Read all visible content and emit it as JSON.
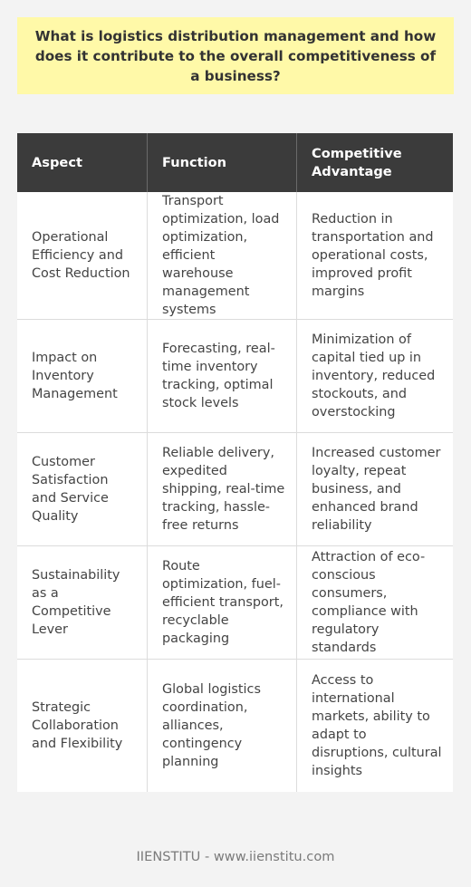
{
  "question": "What is logistics distribution management and how does it contribute to the overall competitiveness of a business?",
  "table": {
    "headers": [
      "Aspect",
      "Function",
      "Competitive Advantage"
    ],
    "rows": [
      {
        "aspect": "Operational Efficiency and Cost Reduction",
        "function": "Transport optimization, load optimization, efficient warehouse management systems",
        "advantage": "Reduction in transportation and operational costs, improved profit margins"
      },
      {
        "aspect": "Impact on Inventory Management",
        "function": "Forecasting, real-time inventory tracking, optimal stock levels",
        "advantage": "Minimization of capital tied up in inventory, reduced stockouts, and overstocking"
      },
      {
        "aspect": "Customer Satisfaction and Service Quality",
        "function": "Reliable delivery, expedited shipping, real-time tracking, hassle-free returns",
        "advantage": "Increased customer loyalty, repeat business, and enhanced brand reliability"
      },
      {
        "aspect": "Sustainability as a Competitive Lever",
        "function": "Route optimization, fuel-efficient transport, recyclable packaging",
        "advantage": "Attraction of eco-conscious consumers, compliance with regulatory standards"
      },
      {
        "aspect": "Strategic Collaboration and Flexibility",
        "function": "Global logistics coordination, alliances, contingency planning",
        "advantage": "Access to international markets, ability to adapt to disruptions, cultural insights"
      }
    ]
  },
  "footer": "IIENSTITU - www.iienstitu.com"
}
